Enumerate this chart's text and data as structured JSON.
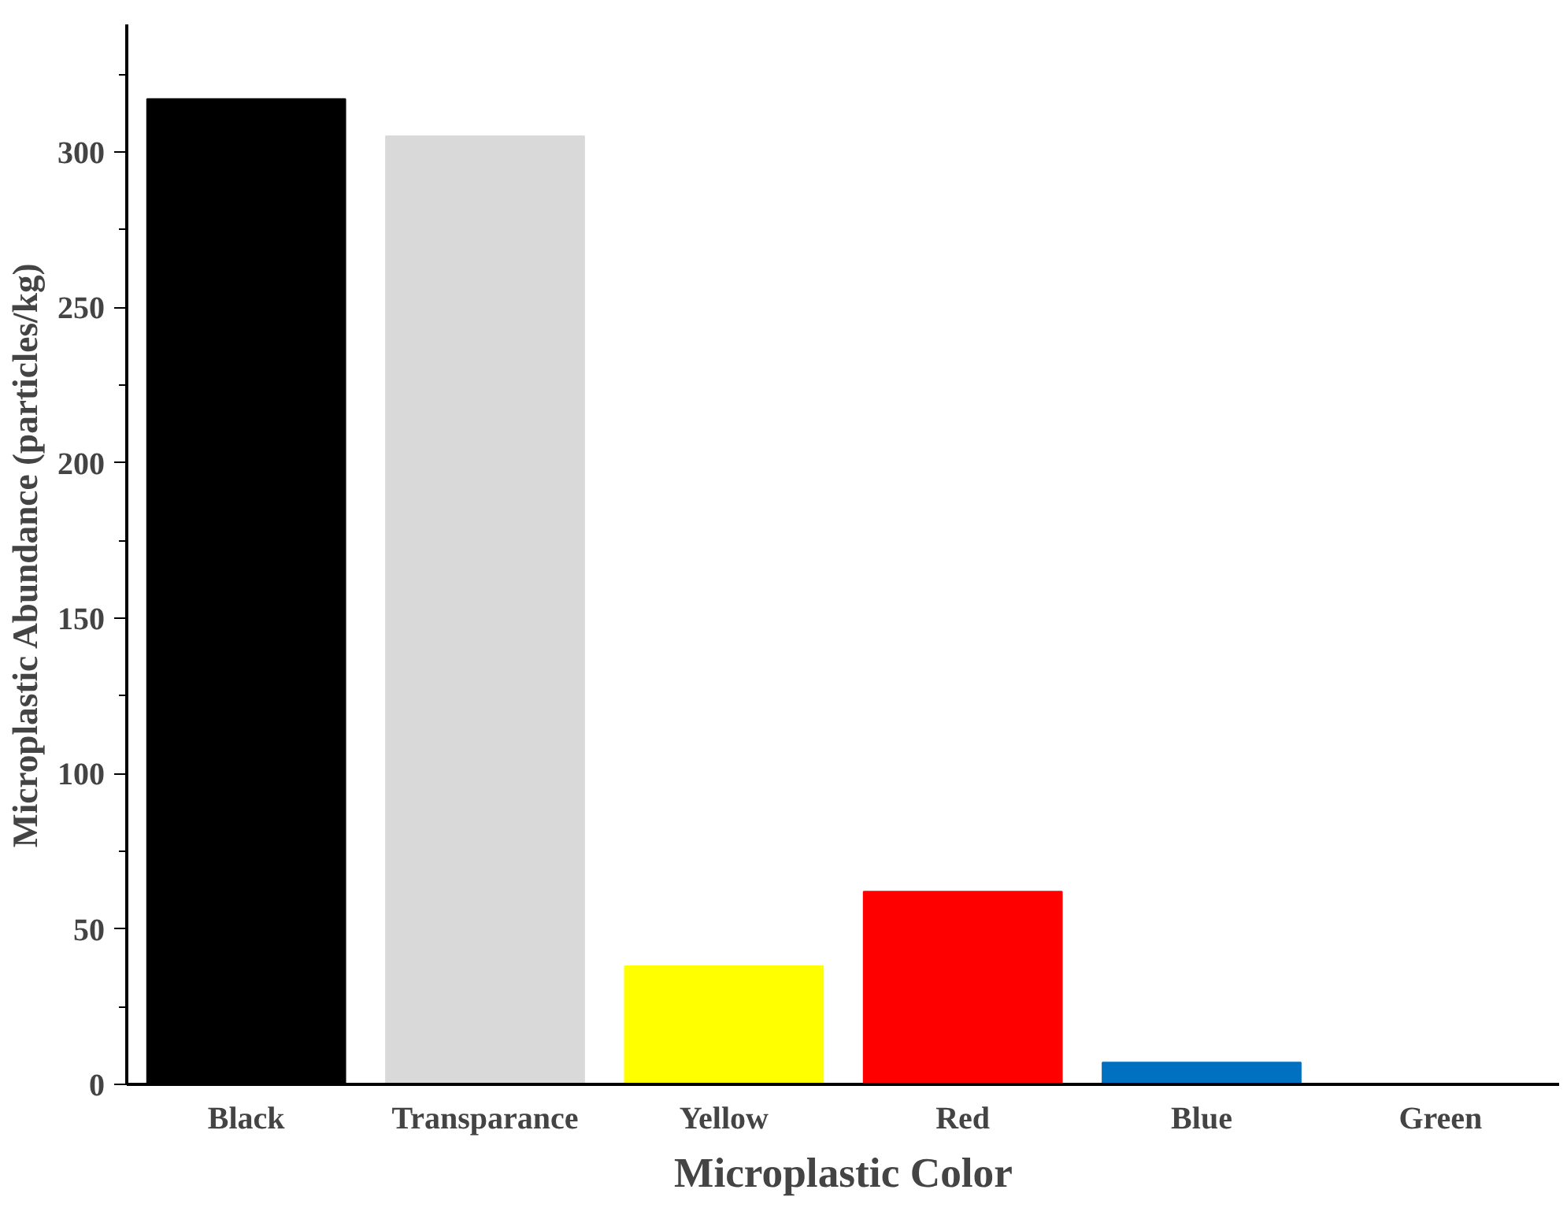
{
  "chart_data": {
    "type": "bar",
    "xlabel": "Microplastic Color",
    "ylabel": "Microplastic Abundance (particles/kg)",
    "categories": [
      "Black",
      "Transparance",
      "Yellow",
      "Red",
      "Blue",
      "Green"
    ],
    "values": [
      317,
      305,
      38,
      62,
      7,
      0
    ],
    "colors": [
      "#000000",
      "#d9d9d9",
      "#ffff00",
      "#ff0000",
      "#0070c0",
      "#00b050"
    ],
    "ylim": [
      0,
      341
    ],
    "yticks": [
      0,
      50,
      100,
      150,
      200,
      250,
      300
    ],
    "grid": false
  }
}
